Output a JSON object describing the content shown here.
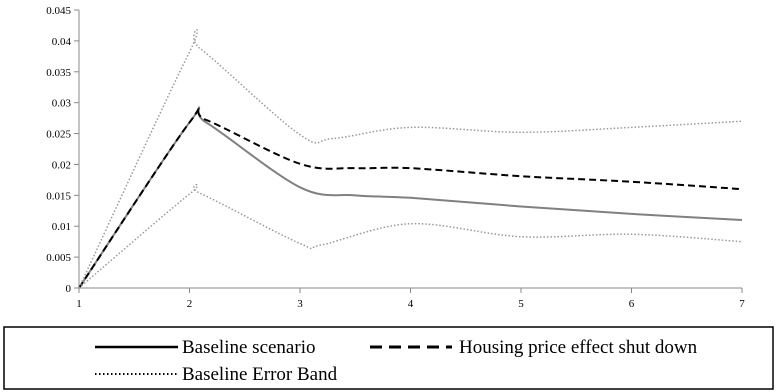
{
  "chart_data": {
    "type": "line",
    "title": "",
    "xlabel": "",
    "ylabel": "",
    "x": [
      1,
      2,
      3,
      4,
      5,
      6,
      7
    ],
    "xlim": [
      1,
      7
    ],
    "ylim": [
      0,
      0.045
    ],
    "y_ticks": [
      "0",
      "0.005",
      "0.01",
      "0.015",
      "0.02",
      "0.025",
      "0.03",
      "0.035",
      "0.04",
      "0.045"
    ],
    "x_ticks": [
      "1",
      "2",
      "3",
      "4",
      "5",
      "6",
      "7"
    ],
    "grid": false,
    "legend_position": "bottom",
    "series": [
      {
        "name": "Baseline scenario",
        "color": "#808080",
        "style": "solid",
        "points": [
          [
            1,
            0
          ],
          [
            2,
            0.0268
          ],
          [
            2.15,
            0.0268
          ],
          [
            3,
            0.0163
          ],
          [
            3.5,
            0.015
          ],
          [
            4,
            0.0146
          ],
          [
            5,
            0.0132
          ],
          [
            6,
            0.012
          ],
          [
            7,
            0.011
          ]
        ]
      },
      {
        "name": "Housing price effect shut down",
        "color": "#000000",
        "style": "dashed",
        "points": [
          [
            1,
            0
          ],
          [
            2,
            0.0268
          ],
          [
            2.15,
            0.0272
          ],
          [
            3,
            0.0201
          ],
          [
            3.5,
            0.0194
          ],
          [
            4,
            0.0194
          ],
          [
            5,
            0.0181
          ],
          [
            6,
            0.0172
          ],
          [
            7,
            0.016
          ]
        ]
      },
      {
        "name": "Baseline Error Band",
        "color": "#999999",
        "style": "dotted",
        "points": [
          [
            1,
            0
          ],
          [
            2,
            0.0382
          ],
          [
            2.1,
            0.0387
          ],
          [
            3,
            0.0248
          ],
          [
            3.3,
            0.0242
          ],
          [
            4,
            0.026
          ],
          [
            5,
            0.0252
          ],
          [
            6,
            0.026
          ],
          [
            7,
            0.027
          ]
        ]
      },
      {
        "name": "Baseline Error Band",
        "color": "#999999",
        "style": "dotted",
        "points": [
          [
            1,
            0
          ],
          [
            2,
            0.0152
          ],
          [
            2.1,
            0.0153
          ],
          [
            3,
            0.0072
          ],
          [
            3.2,
            0.007
          ],
          [
            4,
            0.0104
          ],
          [
            5,
            0.0083
          ],
          [
            6,
            0.0087
          ],
          [
            7,
            0.0075
          ]
        ]
      }
    ],
    "legend": [
      {
        "label": "Baseline scenario",
        "style": "solid",
        "color": "#000000"
      },
      {
        "label": "Housing price effect shut down",
        "style": "dashed",
        "color": "#000000"
      },
      {
        "label": "Baseline Error Band",
        "style": "dotted",
        "color": "#000000"
      }
    ]
  }
}
